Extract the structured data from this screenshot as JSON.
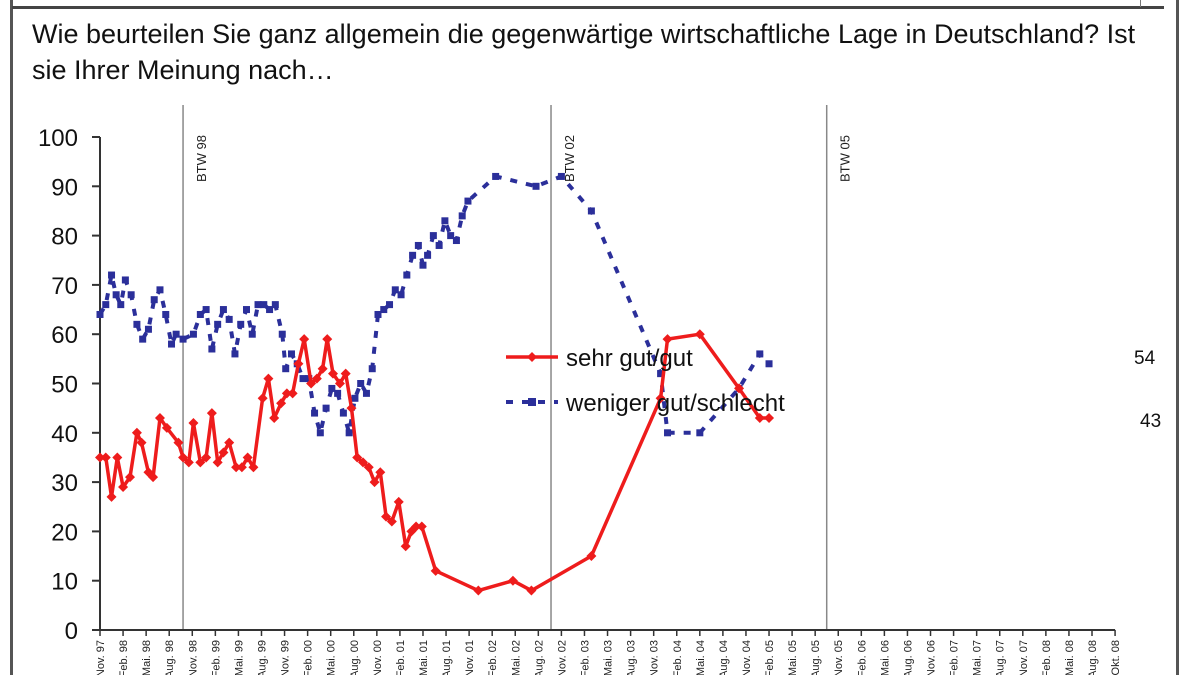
{
  "title": "Wie beurteilen Sie ganz allgemein die gegenwärtige wirtschaftliche Lage in Deutschland? Ist sie Ihrer Meinung nach…",
  "colors": {
    "red": "#ee1c1c",
    "blue": "#2b2f9a",
    "axis": "#333333",
    "vline": "#888888"
  },
  "chart_data": {
    "type": "line",
    "title": "Wie beurteilen Sie ganz allgemein die gegenwärtige wirtschaftliche Lage in Deutschland? Ist sie Ihrer Meinung nach…",
    "xlabel": "",
    "ylabel": "",
    "ylim": [
      0,
      100
    ],
    "yticks": [
      0,
      10,
      20,
      30,
      40,
      50,
      60,
      70,
      80,
      90,
      100
    ],
    "grid": false,
    "legend_position": "center-right (inside plot)",
    "x_tick_labels": [
      "Nov. 97",
      "Feb. 98",
      "Mai. 98",
      "Aug. 98",
      "Nov. 98",
      "Feb. 99",
      "Mai. 99",
      "Aug. 99",
      "Nov. 99",
      "Feb. 00",
      "Mai. 00",
      "Aug. 00",
      "Nov. 00",
      "Feb. 01",
      "Mai. 01",
      "Aug. 01",
      "Nov. 01",
      "Feb. 02",
      "Mai. 02",
      "Aug. 02",
      "Nov. 02",
      "Feb. 03",
      "Mai. 03",
      "Aug. 03",
      "Nov. 03",
      "Feb. 04",
      "Mai. 04",
      "Aug. 04",
      "Nov. 04",
      "Feb. 05",
      "Mai. 05",
      "Aug. 05",
      "Nov. 05",
      "Feb. 06",
      "Mai. 06",
      "Aug. 06",
      "Nov. 06",
      "Feb. 07",
      "Mai. 07",
      "Aug. 07",
      "Nov. 07",
      "Feb. 08",
      "Mai. 08",
      "Aug. 08",
      "Okt. 08"
    ],
    "vertical_markers": [
      {
        "label": "BTW 98",
        "x_index": 3.6
      },
      {
        "label": "BTW 02",
        "x_index": 19.55
      },
      {
        "label": "BTW 05",
        "x_index": 31.5
      }
    ],
    "series": [
      {
        "name": "sehr gut/gut",
        "style": "solid red line with diamond markers",
        "points": [
          [
            0.0,
            35
          ],
          [
            0.25,
            35
          ],
          [
            0.5,
            27
          ],
          [
            0.75,
            35
          ],
          [
            1.0,
            29
          ],
          [
            1.3,
            31
          ],
          [
            1.6,
            40
          ],
          [
            1.8,
            38
          ],
          [
            2.1,
            32
          ],
          [
            2.3,
            31
          ],
          [
            2.6,
            43
          ],
          [
            2.9,
            41
          ],
          [
            3.4,
            38
          ],
          [
            3.6,
            35
          ],
          [
            3.85,
            34
          ],
          [
            4.05,
            42
          ],
          [
            4.35,
            34
          ],
          [
            4.6,
            35
          ],
          [
            4.85,
            44
          ],
          [
            5.1,
            34
          ],
          [
            5.35,
            36
          ],
          [
            5.6,
            38
          ],
          [
            5.9,
            33
          ],
          [
            6.15,
            33
          ],
          [
            6.4,
            35
          ],
          [
            6.65,
            33
          ],
          [
            7.05,
            47
          ],
          [
            7.3,
            51
          ],
          [
            7.55,
            43
          ],
          [
            7.85,
            46
          ],
          [
            8.1,
            48
          ],
          [
            8.35,
            48
          ],
          [
            8.6,
            54
          ],
          [
            8.85,
            59
          ],
          [
            9.15,
            50
          ],
          [
            9.4,
            51
          ],
          [
            9.65,
            53
          ],
          [
            9.85,
            59
          ],
          [
            10.1,
            52
          ],
          [
            10.4,
            50
          ],
          [
            10.65,
            52
          ],
          [
            10.9,
            45
          ],
          [
            11.15,
            35
          ],
          [
            11.4,
            34
          ],
          [
            11.65,
            33
          ],
          [
            11.9,
            30
          ],
          [
            12.15,
            32
          ],
          [
            12.4,
            23
          ],
          [
            12.65,
            22
          ],
          [
            12.95,
            26
          ],
          [
            13.25,
            17
          ],
          [
            13.5,
            20
          ],
          [
            13.7,
            21
          ],
          [
            13.95,
            21
          ],
          [
            14.55,
            12
          ],
          [
            16.4,
            8
          ],
          [
            17.9,
            10
          ],
          [
            18.7,
            8
          ],
          [
            21.3,
            15
          ],
          [
            24.3,
            47
          ],
          [
            24.6,
            59
          ],
          [
            26.0,
            60
          ],
          [
            27.7,
            49
          ],
          [
            28.6,
            43
          ],
          [
            29.0,
            43
          ]
        ],
        "end_label": "43"
      },
      {
        "name": "weniger gut/schlecht",
        "style": "dashed blue line with square markers",
        "points": [
          [
            0.0,
            64
          ],
          [
            0.25,
            66
          ],
          [
            0.5,
            72
          ],
          [
            0.7,
            68
          ],
          [
            0.9,
            66
          ],
          [
            1.1,
            71
          ],
          [
            1.35,
            68
          ],
          [
            1.6,
            62
          ],
          [
            1.85,
            59
          ],
          [
            2.1,
            61
          ],
          [
            2.35,
            67
          ],
          [
            2.6,
            69
          ],
          [
            2.85,
            64
          ],
          [
            3.1,
            58
          ],
          [
            3.3,
            60
          ],
          [
            3.6,
            59
          ],
          [
            4.05,
            60
          ],
          [
            4.35,
            64
          ],
          [
            4.6,
            65
          ],
          [
            4.85,
            57
          ],
          [
            5.1,
            62
          ],
          [
            5.35,
            65
          ],
          [
            5.6,
            63
          ],
          [
            5.85,
            56
          ],
          [
            6.1,
            62
          ],
          [
            6.35,
            65
          ],
          [
            6.6,
            60
          ],
          [
            6.85,
            66
          ],
          [
            7.1,
            66
          ],
          [
            7.35,
            65
          ],
          [
            7.6,
            66
          ],
          [
            7.9,
            60
          ],
          [
            8.05,
            53
          ],
          [
            8.3,
            56
          ],
          [
            8.55,
            54
          ],
          [
            8.8,
            51
          ],
          [
            9.05,
            51
          ],
          [
            9.3,
            44
          ],
          [
            9.55,
            40
          ],
          [
            9.8,
            45
          ],
          [
            10.05,
            49
          ],
          [
            10.3,
            48
          ],
          [
            10.55,
            44
          ],
          [
            10.8,
            40
          ],
          [
            11.05,
            47
          ],
          [
            11.3,
            50
          ],
          [
            11.55,
            48
          ],
          [
            11.8,
            53
          ],
          [
            12.05,
            64
          ],
          [
            12.3,
            65
          ],
          [
            12.55,
            66
          ],
          [
            12.8,
            69
          ],
          [
            13.05,
            68
          ],
          [
            13.3,
            72
          ],
          [
            13.55,
            76
          ],
          [
            13.8,
            78
          ],
          [
            14.0,
            74
          ],
          [
            14.2,
            76
          ],
          [
            14.45,
            80
          ],
          [
            14.7,
            78
          ],
          [
            14.95,
            83
          ],
          [
            15.2,
            80
          ],
          [
            15.45,
            79
          ],
          [
            15.7,
            84
          ],
          [
            15.95,
            87
          ],
          [
            17.15,
            92
          ],
          [
            18.9,
            90
          ],
          [
            20.0,
            92
          ],
          [
            21.3,
            85
          ],
          [
            24.3,
            52
          ],
          [
            24.6,
            40
          ],
          [
            26.0,
            40
          ],
          [
            27.7,
            49
          ],
          [
            28.6,
            56
          ],
          [
            29.0,
            54
          ]
        ],
        "end_label": "54"
      }
    ]
  },
  "legend": [
    {
      "label": "sehr gut/gut"
    },
    {
      "label": "weniger gut/schlecht"
    }
  ],
  "end_labels": {
    "red": "43",
    "blue": "54"
  }
}
